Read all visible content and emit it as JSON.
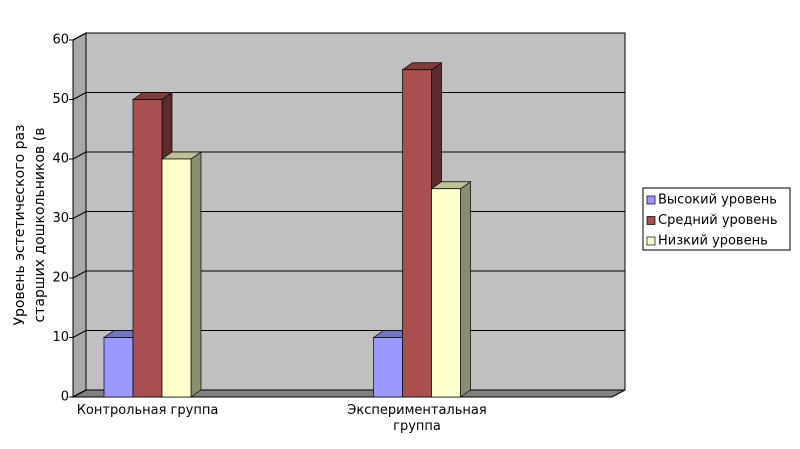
{
  "chart_data": {
    "type": "bar3d",
    "y_label": [
      "Уровень эстетического раз",
      "старших дошкольников (в"
    ],
    "categories": [
      "Контрольная группа",
      "Экспериментальная группа"
    ],
    "series": [
      {
        "name": "Высокий уровень",
        "color": "#9999ff",
        "values": [
          10,
          10
        ]
      },
      {
        "name": "Средний уровень",
        "color": "#aa4f4f",
        "values": [
          50,
          55
        ]
      },
      {
        "name": "Низкий уровень",
        "color": "#ffffcc",
        "values": [
          40,
          35
        ]
      }
    ],
    "ylim": [
      0,
      60
    ],
    "yticks": [
      0,
      10,
      20,
      30,
      40,
      50,
      60
    ],
    "grid": true,
    "legend": "right"
  }
}
